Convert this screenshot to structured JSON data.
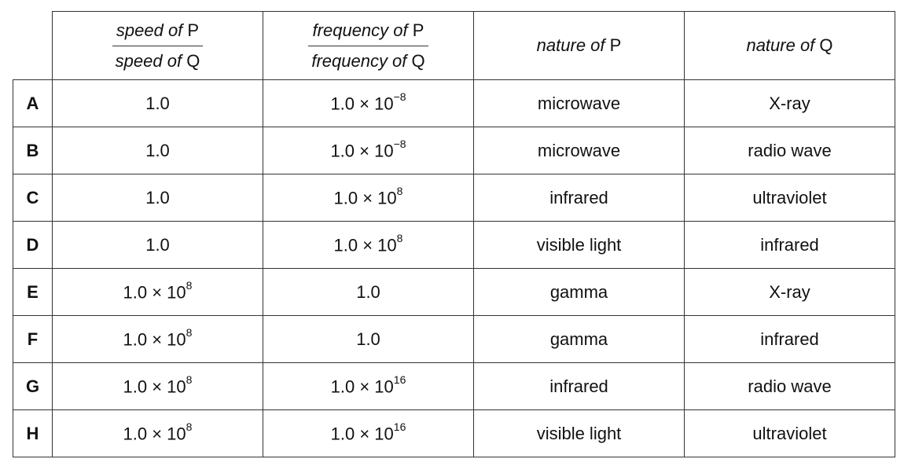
{
  "table": {
    "header": [
      {
        "numerator": {
          "italic": "speed of",
          "upright": "P"
        },
        "denominator": {
          "italic": "speed of",
          "upright": "Q"
        }
      },
      {
        "numerator": {
          "italic": "frequency of",
          "upright": "P"
        },
        "denominator": {
          "italic": "frequency of",
          "upright": "Q"
        }
      },
      {
        "italic": "nature of",
        "upright": "P"
      },
      {
        "italic": "nature of",
        "upright": "Q"
      }
    ],
    "rows": [
      {
        "label": "A",
        "cells": [
          "1.0",
          {
            "base": "1.0 × 10",
            "exp": "−8"
          },
          "microwave",
          "X-ray"
        ]
      },
      {
        "label": "B",
        "cells": [
          "1.0",
          {
            "base": "1.0 × 10",
            "exp": "−8"
          },
          "microwave",
          "radio wave"
        ]
      },
      {
        "label": "C",
        "cells": [
          "1.0",
          {
            "base": "1.0 × 10",
            "exp": "8"
          },
          "infrared",
          "ultraviolet"
        ]
      },
      {
        "label": "D",
        "cells": [
          "1.0",
          {
            "base": "1.0 × 10",
            "exp": "8"
          },
          "visible light",
          "infrared"
        ]
      },
      {
        "label": "E",
        "cells": [
          {
            "base": "1.0 × 10",
            "exp": "8"
          },
          "1.0",
          "gamma",
          "X-ray"
        ]
      },
      {
        "label": "F",
        "cells": [
          {
            "base": "1.0 × 10",
            "exp": "8"
          },
          "1.0",
          "gamma",
          "infrared"
        ]
      },
      {
        "label": "G",
        "cells": [
          {
            "base": "1.0 × 10",
            "exp": "8"
          },
          {
            "base": "1.0 × 10",
            "exp": "16"
          },
          "infrared",
          "radio wave"
        ]
      },
      {
        "label": "H",
        "cells": [
          {
            "base": "1.0 × 10",
            "exp": "8"
          },
          {
            "base": "1.0 × 10",
            "exp": "16"
          },
          "visible light",
          "ultraviolet"
        ]
      }
    ]
  }
}
